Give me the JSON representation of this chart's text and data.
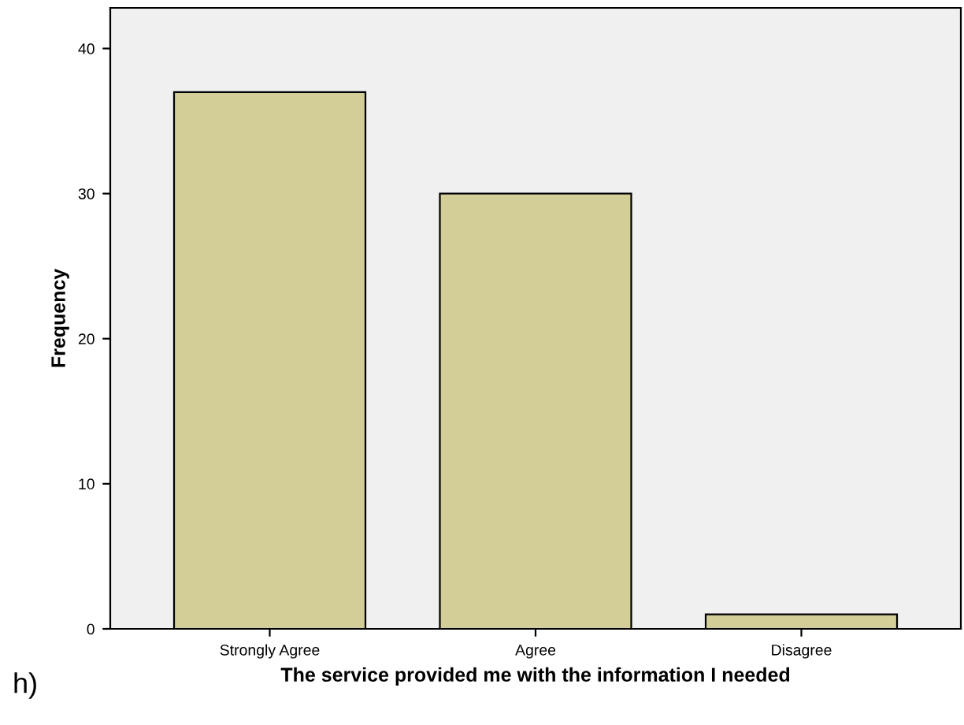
{
  "chart_data": {
    "type": "bar",
    "xlabel": "The service provided me with the information I needed",
    "ylabel": "Frequency",
    "categories": [
      "Strongly Agree",
      "Agree",
      "Disagree"
    ],
    "values": [
      37,
      30,
      1
    ],
    "color": "#d3ce98",
    "ylim": [
      0,
      42.8
    ],
    "yticks": [
      0,
      10,
      20,
      30,
      40
    ],
    "grid": false,
    "annotations": [
      "h)"
    ]
  }
}
